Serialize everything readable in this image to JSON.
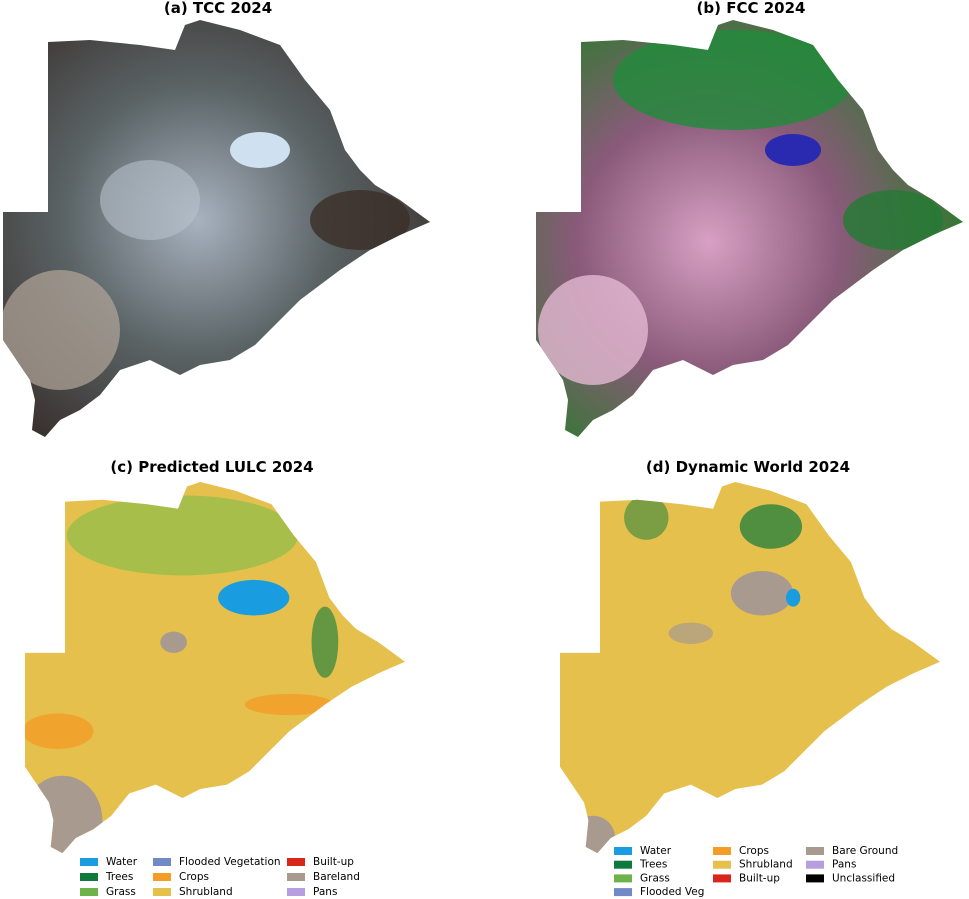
{
  "panels": [
    {
      "title": "(a) TCC 2024"
    },
    {
      "title": "(b) FCC 2024"
    },
    {
      "title": "(c) Predicted LULC 2024",
      "legend": [
        [
          {
            "label": "Water",
            "color": "#1a9de0"
          },
          {
            "label": "Trees",
            "color": "#0f7a3c"
          },
          {
            "label": "Grass",
            "color": "#6db34a"
          }
        ],
        [
          {
            "label": "Flooded Vegetation",
            "color": "#7289c8"
          },
          {
            "label": "Crops",
            "color": "#f39c26"
          },
          {
            "label": "Shrubland",
            "color": "#e6c04c"
          }
        ],
        [
          {
            "label": "Built-up",
            "color": "#d9261c"
          },
          {
            "label": "Bareland",
            "color": "#a89a8f"
          },
          {
            "label": "Pans",
            "color": "#b79ee0"
          }
        ]
      ]
    },
    {
      "title": "(d) Dynamic World 2024",
      "legend": [
        [
          {
            "label": "Water",
            "color": "#1a9de0"
          },
          {
            "label": "Trees",
            "color": "#0f7a3c"
          },
          {
            "label": "Grass",
            "color": "#6db34a"
          },
          {
            "label": "Flooded Veg",
            "color": "#7289c8"
          }
        ],
        [
          {
            "label": "Crops",
            "color": "#f39c26"
          },
          {
            "label": "Shrubland",
            "color": "#e6c04c"
          },
          {
            "label": "Built-up",
            "color": "#d9261c"
          }
        ],
        [
          {
            "label": "Bare Ground",
            "color": "#a89a8f"
          },
          {
            "label": "Pans",
            "color": "#b79ee0"
          },
          {
            "label": "Unclassified",
            "color": "#000000"
          }
        ]
      ]
    }
  ]
}
